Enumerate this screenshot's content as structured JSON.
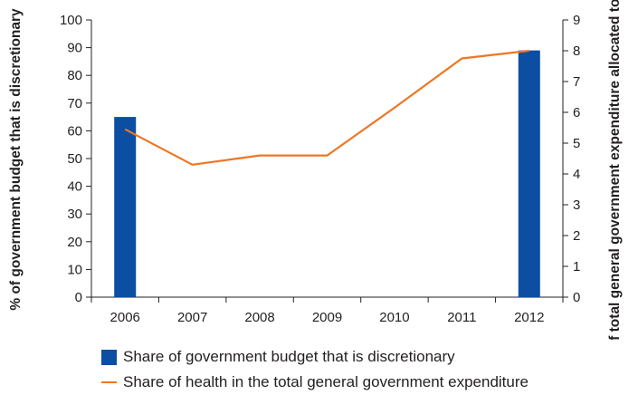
{
  "chart_data": {
    "type": "bar+line",
    "categories": [
      "2006",
      "2007",
      "2008",
      "2009",
      "2010",
      "2011",
      "2012"
    ],
    "series": [
      {
        "name": "Share of government budget that is discretionary",
        "type": "bar",
        "axis": "left",
        "values": [
          65,
          null,
          null,
          null,
          null,
          null,
          89
        ]
      },
      {
        "name": "Share of health in the total general government expenditure",
        "type": "line",
        "axis": "right",
        "values": [
          5.45,
          4.3,
          4.6,
          4.6,
          6.15,
          7.75,
          8.0
        ]
      }
    ],
    "ylabel_left": "% of government budget that is discretionary",
    "ylabel_right": "% of total general government expenditure allocated to health",
    "ylim_left": [
      0,
      100
    ],
    "ylim_right": [
      0,
      9
    ],
    "yticks_left": [
      "0",
      "10",
      "20",
      "30",
      "40",
      "50",
      "60",
      "70",
      "80",
      "90",
      "100"
    ],
    "yticks_right": [
      "0",
      "1",
      "2",
      "3",
      "4",
      "5",
      "6",
      "7",
      "8",
      "9"
    ],
    "grid": false,
    "legend_position": "bottom",
    "colors": {
      "bar": "#0b4ea2",
      "line": "#ee7623",
      "axis": "#231f20"
    }
  }
}
